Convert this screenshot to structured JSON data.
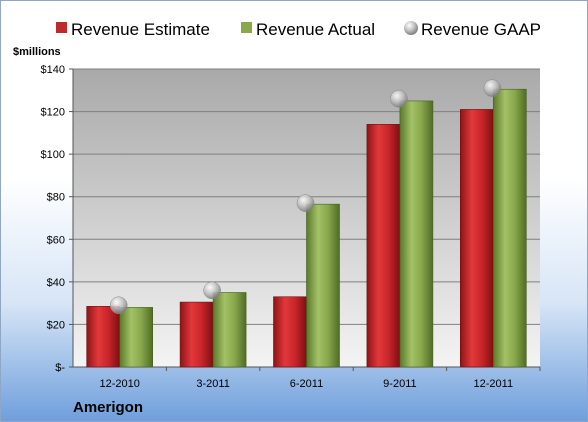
{
  "chart_data": {
    "type": "bar",
    "unit_label": "$millions",
    "company": "Amerigon",
    "categories": [
      "12-2010",
      "3-2011",
      "6-2011",
      "9-2011",
      "12-2011"
    ],
    "ylim": [
      0,
      140
    ],
    "y_ticks": [
      {
        "value": 0,
        "label": "$-"
      },
      {
        "value": 20,
        "label": "$20"
      },
      {
        "value": 40,
        "label": "$40"
      },
      {
        "value": 60,
        "label": "$60"
      },
      {
        "value": 80,
        "label": "$80"
      },
      {
        "value": 100,
        "label": "$100"
      },
      {
        "value": 120,
        "label": "$120"
      },
      {
        "value": 140,
        "label": "$140"
      }
    ],
    "grid": true,
    "legend_position": "top",
    "series": [
      {
        "name": "Revenue Estimate",
        "kind": "bar",
        "color": "#c0282c",
        "values": [
          28.5,
          30.5,
          33,
          114,
          121
        ]
      },
      {
        "name": "Revenue Actual",
        "kind": "bar",
        "color": "#8aa84a",
        "values": [
          28,
          35,
          76.5,
          125,
          130.5
        ]
      },
      {
        "name": "Revenue GAAP",
        "kind": "marker",
        "color": "#a8a8a8",
        "values": [
          29,
          36,
          77,
          126,
          131
        ]
      }
    ]
  }
}
